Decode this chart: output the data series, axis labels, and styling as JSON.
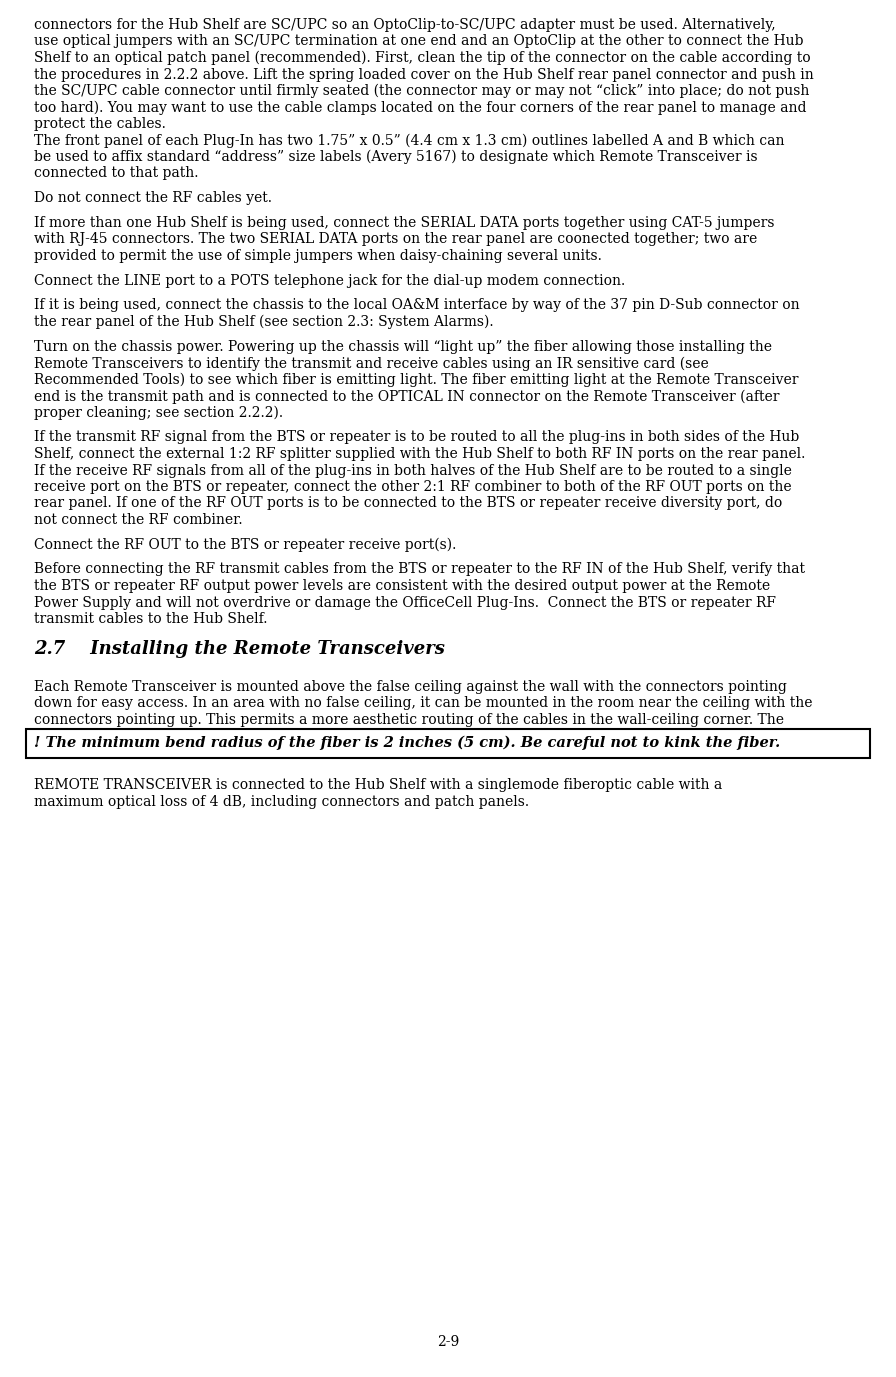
{
  "page_number": "2-9",
  "background_color": "#ffffff",
  "text_color": "#000000",
  "font_size_body": 10.0,
  "font_size_heading": 13.0,
  "font_size_page_num": 10.0,
  "paragraphs": [
    {
      "type": "body",
      "text": "connectors for the Hub Shelf are SC/UPC so an OptoClip-to-SC/UPC adapter must be used. Alternatively,\nuse optical jumpers with an SC/UPC termination at one end and an OptoClip at the other to connect the Hub\nShelf to an optical patch panel (recommended). First, clean the tip of the connector on the cable according to\nthe procedures in 2.2.2 above. Lift the spring loaded cover on the Hub Shelf rear panel connector and push in\nthe SC/UPC cable connector until firmly seated (the connector may or may not “click” into place; do not push\ntoo hard). You may want to use the cable clamps located on the four corners of the rear panel to manage and\nprotect the cables."
    },
    {
      "type": "body",
      "text": "The front panel of each Plug-In has two 1.75” x 0.5” (4.4 cm x 1.3 cm) outlines labelled A and B which can\nbe used to affix standard “address” size labels (Avery 5167) to designate which Remote Transceiver is\nconnected to that path."
    },
    {
      "type": "spacer",
      "size": 0.5
    },
    {
      "type": "body",
      "text": "Do not connect the RF cables yet."
    },
    {
      "type": "spacer",
      "size": 0.5
    },
    {
      "type": "body",
      "text": "If more than one Hub Shelf is being used, connect the SERIAL DATA ports together using CAT-5 jumpers\nwith RJ-45 connectors. The two SERIAL DATA ports on the rear panel are coonected together; two are\nprovided to permit the use of simple jumpers when daisy-chaining several units."
    },
    {
      "type": "spacer",
      "size": 0.5
    },
    {
      "type": "body",
      "text": "Connect the LINE port to a POTS telephone jack for the dial-up modem connection."
    },
    {
      "type": "spacer",
      "size": 0.5
    },
    {
      "type": "body",
      "text": "If it is being used, connect the chassis to the local OA&M interface by way of the 37 pin D-Sub connector on\nthe rear panel of the Hub Shelf (see section 2.3: System Alarms)."
    },
    {
      "type": "spacer",
      "size": 0.5
    },
    {
      "type": "body",
      "text": "Turn on the chassis power. Powering up the chassis will “light up” the fiber allowing those installing the\nRemote Transceivers to identify the transmit and receive cables using an IR sensitive card (see\nRecommended Tools) to see which fiber is emitting light. The fiber emitting light at the Remote Transceiver\nend is the transmit path and is connected to the OPTICAL IN connector on the Remote Transceiver (after\nproper cleaning; see section 2.2.2)."
    },
    {
      "type": "spacer",
      "size": 0.5
    },
    {
      "type": "body",
      "text": "If the transmit RF signal from the BTS or repeater is to be routed to all the plug-ins in both sides of the Hub\nShelf, connect the external 1:2 RF splitter supplied with the Hub Shelf to both RF IN ports on the rear panel.\nIf the receive RF signals from all of the plug-ins in both halves of the Hub Shelf are to be routed to a single\nreceive port on the BTS or repeater, connect the other 2:1 RF combiner to both of the RF OUT ports on the\nrear panel. If one of the RF OUT ports is to be connected to the BTS or repeater receive diversity port, do\nnot connect the RF combiner."
    },
    {
      "type": "spacer",
      "size": 0.5
    },
    {
      "type": "body",
      "text": "Connect the RF OUT to the BTS or repeater receive port(s)."
    },
    {
      "type": "spacer",
      "size": 0.5
    },
    {
      "type": "body",
      "text": "Before connecting the RF transmit cables from the BTS or repeater to the RF IN of the Hub Shelf, verify that\nthe BTS or repeater RF output power levels are consistent with the desired output power at the Remote\nPower Supply and will not overdrive or damage the OfficeCell Plug-Ins.  Connect the BTS or repeater RF\ntransmit cables to the Hub Shelf."
    },
    {
      "type": "heading",
      "text": "2.7    Installing the Remote Transceivers"
    },
    {
      "type": "spacer",
      "size": 0.5
    },
    {
      "type": "body",
      "text": "Each Remote Transceiver is mounted above the false ceiling against the wall with the connectors pointing\ndown for easy access. In an area with no false ceiling, it can be mounted in the room near the ceiling with the\nconnectors pointing up. This permits a more aesthetic routing of the cables in the wall-ceiling corner. The"
    },
    {
      "type": "callout",
      "text": "! The minimum bend radius of the fiber is 2 inches (5 cm). Be careful not to kink the fiber."
    },
    {
      "type": "spacer",
      "size": 0.5
    },
    {
      "type": "body",
      "text": "REMOTE TRANSCEIVER is connected to the Hub Shelf with a singlemode fiberoptic cable with a\nmaximum optical loss of 4 dB, including connectors and patch panels."
    }
  ]
}
